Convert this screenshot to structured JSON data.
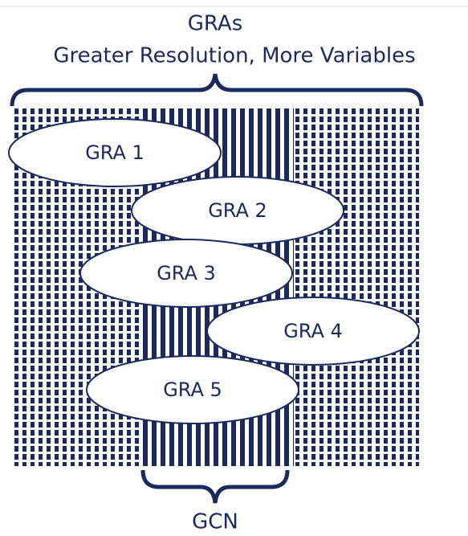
{
  "header": {
    "title": "GRAs",
    "subtitle": "Greater Resolution, More Variables"
  },
  "nodes": [
    {
      "label": "GRA 1"
    },
    {
      "label": "GRA 2"
    },
    {
      "label": "GRA 3"
    },
    {
      "label": "GRA 4"
    },
    {
      "label": "GRA 5"
    }
  ],
  "footer": {
    "label": "GCN"
  }
}
